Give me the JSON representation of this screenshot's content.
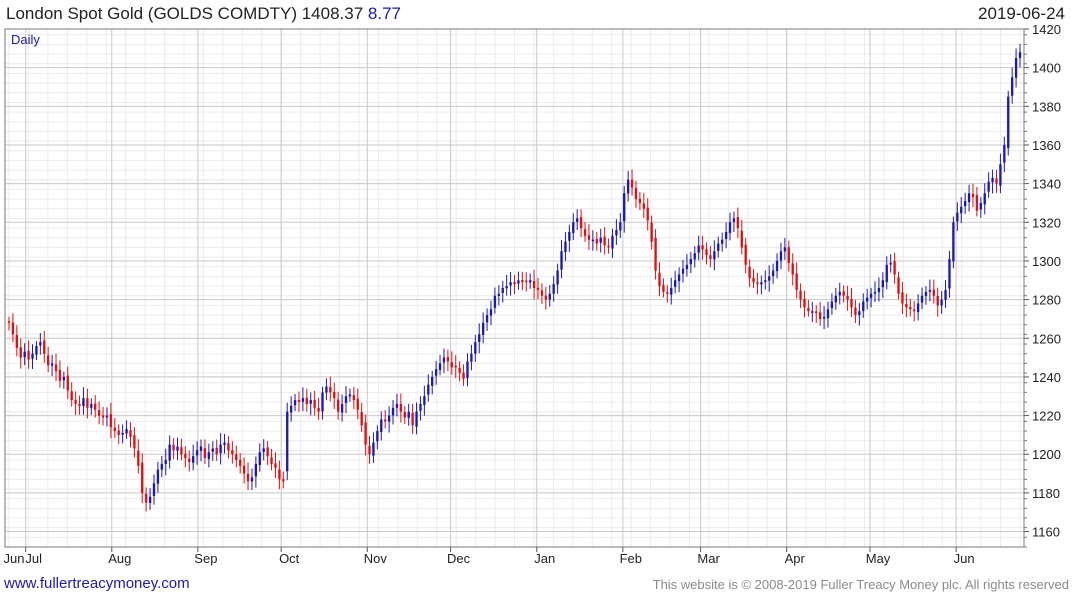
{
  "header": {
    "title": "London Spot Gold (GOLDS COMDTY) 1408.37",
    "change": "8.77",
    "date": "2019-06-24"
  },
  "chart_data": {
    "type": "candlestick",
    "title": "London Spot Gold (GOLDS COMDTY)",
    "last_value": 1408.37,
    "change": 8.77,
    "frequency_label": "Daily",
    "xlabel": "",
    "ylabel": "",
    "ylim": [
      1152,
      1420
    ],
    "grid": true,
    "colors": {
      "up": "#1a1ab4",
      "down": "#dd1111"
    },
    "x_tick_labels": [
      "Jun",
      "Jul",
      "Aug",
      "Sep",
      "Oct",
      "Nov",
      "Dec",
      "Jan",
      "Feb",
      "Mar",
      "Apr",
      "May",
      "Jun"
    ],
    "y_ticks": [
      1160,
      1180,
      1200,
      1220,
      1240,
      1260,
      1280,
      1300,
      1320,
      1340,
      1360,
      1380,
      1400,
      1420
    ],
    "series": [
      {
        "name": "GOLDS COMDTY",
        "period": {
          "start": "2018-06-25",
          "end": "2019-06-24"
        },
        "closes": [
          1268,
          1262,
          1255,
          1250,
          1253,
          1249,
          1252,
          1256,
          1258,
          1252,
          1246,
          1247,
          1243,
          1238,
          1240,
          1233,
          1228,
          1226,
          1225,
          1229,
          1224,
          1226,
          1223,
          1220,
          1219,
          1220,
          1214,
          1212,
          1210,
          1211,
          1213,
          1209,
          1203,
          1194,
          1180,
          1175,
          1178,
          1185,
          1192,
          1195,
          1197,
          1205,
          1202,
          1204,
          1200,
          1198,
          1196,
          1199,
          1202,
          1204,
          1198,
          1201,
          1203,
          1200,
          1205,
          1206,
          1202,
          1200,
          1197,
          1194,
          1190,
          1186,
          1188,
          1195,
          1201,
          1203,
          1199,
          1195,
          1193,
          1187,
          1186,
          1222,
          1225,
          1228,
          1227,
          1229,
          1226,
          1228,
          1224,
          1222,
          1232,
          1235,
          1232,
          1229,
          1222,
          1226,
          1230,
          1231,
          1228,
          1223,
          1215,
          1205,
          1200,
          1206,
          1212,
          1218,
          1217,
          1220,
          1224,
          1226,
          1222,
          1219,
          1222,
          1215,
          1222,
          1226,
          1230,
          1236,
          1240,
          1244,
          1247,
          1250,
          1248,
          1245,
          1245,
          1242,
          1239,
          1248,
          1252,
          1258,
          1262,
          1268,
          1272,
          1275,
          1282,
          1283,
          1286,
          1287,
          1289,
          1288,
          1290,
          1289,
          1289,
          1290,
          1286,
          1285,
          1282,
          1280,
          1283,
          1288,
          1295,
          1305,
          1310,
          1315,
          1320,
          1322,
          1317,
          1313,
          1311,
          1311,
          1309,
          1312,
          1308,
          1307,
          1313,
          1316,
          1320,
          1335,
          1342,
          1338,
          1332,
          1330,
          1327,
          1321,
          1310,
          1295,
          1287,
          1284,
          1283,
          1286,
          1290,
          1293,
          1296,
          1298,
          1301,
          1304,
          1308,
          1306,
          1303,
          1301,
          1305,
          1309,
          1311,
          1315,
          1320,
          1322,
          1317,
          1307,
          1298,
          1291,
          1289,
          1288,
          1289,
          1290,
          1292,
          1295,
          1300,
          1305,
          1307,
          1299,
          1293,
          1285,
          1280,
          1276,
          1274,
          1274,
          1273,
          1270,
          1271,
          1275,
          1279,
          1282,
          1284,
          1282,
          1280,
          1276,
          1272,
          1274,
          1279,
          1281,
          1283,
          1284,
          1286,
          1290,
          1298,
          1299,
          1293,
          1283,
          1278,
          1276,
          1275,
          1274,
          1278,
          1282,
          1284,
          1285,
          1282,
          1277,
          1280,
          1285,
          1301,
          1320,
          1325,
          1328,
          1331,
          1335,
          1333,
          1326,
          1330,
          1335,
          1341,
          1343,
          1340,
          1350,
          1360,
          1385,
          1395,
          1405,
          1408
        ]
      }
    ]
  }
}
